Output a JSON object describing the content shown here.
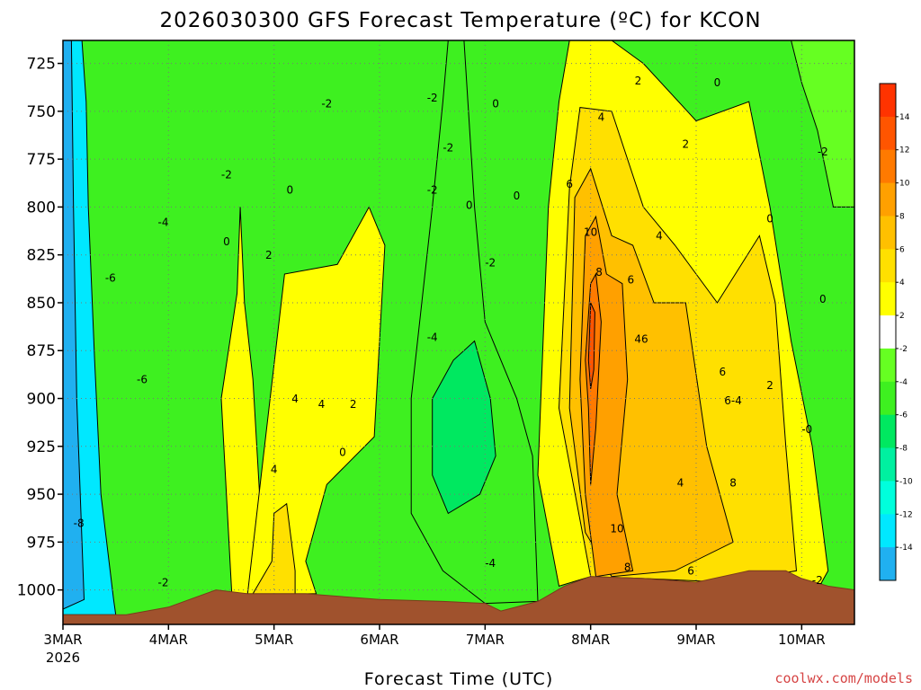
{
  "chart_data": {
    "type": "contour",
    "title": "2026030300 GFS Forecast Temperature (ºC) for KCON",
    "xlabel": "Forecast Time (UTC)",
    "ylabel": "",
    "credit": "coolwx.com/models",
    "x_ticks": [
      {
        "label": "3MAR",
        "sublabel": "2026",
        "day": 0
      },
      {
        "label": "4MAR",
        "sublabel": "",
        "day": 1
      },
      {
        "label": "5MAR",
        "sublabel": "",
        "day": 2
      },
      {
        "label": "6MAR",
        "sublabel": "",
        "day": 3
      },
      {
        "label": "7MAR",
        "sublabel": "",
        "day": 4
      },
      {
        "label": "8MAR",
        "sublabel": "",
        "day": 5
      },
      {
        "label": "9MAR",
        "sublabel": "",
        "day": 6
      },
      {
        "label": "10MAR",
        "sublabel": "",
        "day": 7
      }
    ],
    "x_range_days": [
      0,
      7.5
    ],
    "y_ticks": [
      725,
      750,
      775,
      800,
      825,
      850,
      875,
      900,
      925,
      950,
      975,
      1000
    ],
    "y_range_hpa": [
      713,
      1018
    ],
    "colorbar": {
      "levels": [
        -14,
        -12,
        -10,
        -8,
        -6,
        -4,
        -2,
        2,
        4,
        6,
        8,
        10,
        12,
        14
      ],
      "colors": [
        "#20b0f0",
        "#00e8ff",
        "#00ffdc",
        "#00f0a0",
        "#00e860",
        "#3ef020",
        "#66ff22",
        "#ffffff",
        "#ffff00",
        "#ffe000",
        "#ffc000",
        "#ffa000",
        "#ff7a00",
        "#ff5500",
        "#ff3300"
      ]
    },
    "surface": [
      {
        "day": 0,
        "hpa": 1013
      },
      {
        "day": 0.6,
        "hpa": 1013
      },
      {
        "day": 1.0,
        "hpa": 1009
      },
      {
        "day": 1.45,
        "hpa": 1000
      },
      {
        "day": 1.75,
        "hpa": 1002
      },
      {
        "day": 2.0,
        "hpa": 1002
      },
      {
        "day": 2.3,
        "hpa": 1002
      },
      {
        "day": 3.0,
        "hpa": 1005
      },
      {
        "day": 3.6,
        "hpa": 1006
      },
      {
        "day": 4.0,
        "hpa": 1007
      },
      {
        "day": 4.15,
        "hpa": 1011
      },
      {
        "day": 4.5,
        "hpa": 1006
      },
      {
        "day": 4.75,
        "hpa": 998
      },
      {
        "day": 5.0,
        "hpa": 993
      },
      {
        "day": 5.5,
        "hpa": 994
      },
      {
        "day": 6.0,
        "hpa": 996
      },
      {
        "day": 6.5,
        "hpa": 990
      },
      {
        "day": 6.85,
        "hpa": 990
      },
      {
        "day": 7.0,
        "hpa": 994
      },
      {
        "day": 7.25,
        "hpa": 998
      },
      {
        "day": 7.5,
        "hpa": 1000
      }
    ],
    "regions": [
      {
        "name": "zone-cold-core",
        "level": -14,
        "color": "#00e8ff",
        "pts": [
          [
            0,
            713
          ],
          [
            0.18,
            713
          ],
          [
            0.22,
            745
          ],
          [
            0.24,
            800
          ],
          [
            0.3,
            880
          ],
          [
            0.36,
            950
          ],
          [
            0.48,
            1005
          ],
          [
            0.5,
            1013
          ],
          [
            0,
            1013
          ]
        ]
      },
      {
        "name": "zone-cold-edge",
        "level": -12,
        "color": "#20b0f0",
        "pts": [
          [
            0,
            713
          ],
          [
            0.08,
            713
          ],
          [
            0.1,
            800
          ],
          [
            0.13,
            900
          ],
          [
            0.2,
            1005
          ],
          [
            0,
            1010
          ]
        ]
      },
      {
        "name": "zone-warm-wedge-a",
        "level": 2,
        "color": "#ffff00",
        "pts": [
          [
            1.5,
            900
          ],
          [
            1.65,
            845
          ],
          [
            1.68,
            800
          ],
          [
            1.72,
            850
          ],
          [
            1.8,
            890
          ],
          [
            1.9,
            985
          ],
          [
            2.0,
            1002
          ],
          [
            1.6,
            1002
          ]
        ]
      },
      {
        "name": "zone-warm-wedge-b",
        "level": 2,
        "color": "#ffff00",
        "pts": [
          [
            1.75,
            1002
          ],
          [
            1.9,
            930
          ],
          [
            2.1,
            835
          ],
          [
            2.6,
            830
          ],
          [
            2.9,
            800
          ],
          [
            3.05,
            820
          ],
          [
            2.95,
            920
          ],
          [
            2.5,
            945
          ],
          [
            2.3,
            985
          ],
          [
            2.4,
            1002
          ]
        ]
      },
      {
        "name": "zone-warm-wedge-c",
        "level": 4,
        "color": "#ffe000",
        "pts": [
          [
            1.8,
            1002
          ],
          [
            1.98,
            985
          ],
          [
            2.0,
            960
          ],
          [
            2.12,
            955
          ],
          [
            2.2,
            990
          ],
          [
            2.2,
            1002
          ]
        ]
      },
      {
        "name": "zone-warm-front",
        "level": 2,
        "color": "#ffff00",
        "pts": [
          [
            4.5,
            940
          ],
          [
            4.6,
            800
          ],
          [
            4.7,
            745
          ],
          [
            4.8,
            713
          ],
          [
            5.2,
            713
          ],
          [
            5.5,
            725
          ],
          [
            6.0,
            755
          ],
          [
            6.5,
            745
          ],
          [
            6.7,
            800
          ],
          [
            6.9,
            870
          ],
          [
            7.1,
            925
          ],
          [
            7.25,
            990
          ],
          [
            7.15,
            1000
          ],
          [
            5.0,
            993
          ],
          [
            4.7,
            998
          ]
        ]
      },
      {
        "name": "zone-warm-core-a",
        "level": 4,
        "color": "#ffe000",
        "pts": [
          [
            4.7,
            905
          ],
          [
            4.8,
            790
          ],
          [
            4.9,
            748
          ],
          [
            5.2,
            750
          ],
          [
            5.5,
            800
          ],
          [
            5.8,
            820
          ],
          [
            6.2,
            850
          ],
          [
            6.6,
            815
          ],
          [
            6.75,
            850
          ],
          [
            6.85,
            925
          ],
          [
            6.95,
            990
          ],
          [
            6.3,
            996
          ],
          [
            5.5,
            994
          ],
          [
            5.0,
            993
          ]
        ]
      },
      {
        "name": "zone-warm-core-b",
        "level": 6,
        "color": "#ffc000",
        "pts": [
          [
            4.8,
            905
          ],
          [
            4.85,
            795
          ],
          [
            5.0,
            780
          ],
          [
            5.2,
            815
          ],
          [
            5.4,
            820
          ],
          [
            5.6,
            850
          ],
          [
            5.9,
            850
          ],
          [
            6.1,
            925
          ],
          [
            6.35,
            975
          ],
          [
            5.8,
            990
          ],
          [
            5.2,
            993
          ],
          [
            4.95,
            970
          ]
        ]
      },
      {
        "name": "zone-warm-core-c",
        "level": 8,
        "color": "#ffa000",
        "pts": [
          [
            4.9,
            890
          ],
          [
            4.95,
            815
          ],
          [
            5.05,
            805
          ],
          [
            5.15,
            835
          ],
          [
            5.3,
            840
          ],
          [
            5.35,
            890
          ],
          [
            5.25,
            950
          ],
          [
            5.4,
            990
          ],
          [
            5.05,
            993
          ],
          [
            4.95,
            950
          ]
        ]
      },
      {
        "name": "zone-warm-core-d",
        "level": 10,
        "color": "#ff7a00",
        "pts": [
          [
            4.95,
            880
          ],
          [
            5.0,
            840
          ],
          [
            5.05,
            835
          ],
          [
            5.1,
            860
          ],
          [
            5.05,
            915
          ],
          [
            5.0,
            945
          ],
          [
            4.98,
            905
          ]
        ]
      },
      {
        "name": "zone-warm-core-e",
        "level": 12,
        "color": "#ff5500",
        "pts": [
          [
            4.98,
            880
          ],
          [
            5.0,
            850
          ],
          [
            5.04,
            855
          ],
          [
            5.03,
            885
          ],
          [
            5.0,
            895
          ]
        ]
      },
      {
        "name": "zone-mid-cold",
        "level": -4,
        "color": "#3ef020",
        "pts": [
          [
            3.3,
            900
          ],
          [
            3.5,
            800
          ],
          [
            3.6,
            745
          ],
          [
            3.65,
            713
          ],
          [
            3.8,
            713
          ],
          [
            3.9,
            800
          ],
          [
            4.0,
            860
          ],
          [
            4.3,
            900
          ],
          [
            4.45,
            930
          ],
          [
            4.5,
            1006
          ],
          [
            4.0,
            1007
          ],
          [
            3.6,
            990
          ],
          [
            3.3,
            960
          ]
        ]
      },
      {
        "name": "zone-mid-cold-inner",
        "level": -6,
        "color": "#00e860",
        "pts": [
          [
            3.5,
            900
          ],
          [
            3.7,
            880
          ],
          [
            3.9,
            870
          ],
          [
            4.05,
            900
          ],
          [
            4.1,
            930
          ],
          [
            3.95,
            950
          ],
          [
            3.65,
            960
          ],
          [
            3.5,
            940
          ]
        ]
      },
      {
        "name": "zone-upper-right",
        "level": -2,
        "color": "#66ff22",
        "pts": [
          [
            6.9,
            713
          ],
          [
            7.5,
            713
          ],
          [
            7.5,
            800
          ],
          [
            7.3,
            800
          ],
          [
            7.15,
            760
          ],
          [
            7.0,
            735
          ]
        ]
      }
    ],
    "contour_labels": [
      {
        "text": "-2",
        "day": 2.5,
        "hpa": 748
      },
      {
        "text": "-2",
        "day": 3.5,
        "hpa": 745
      },
      {
        "text": "0",
        "day": 4.1,
        "hpa": 748
      },
      {
        "text": "-2",
        "day": 1.55,
        "hpa": 785
      },
      {
        "text": "-2",
        "day": 3.65,
        "hpa": 771
      },
      {
        "text": "0",
        "day": 2.15,
        "hpa": 793
      },
      {
        "text": "-4",
        "day": 0.95,
        "hpa": 810
      },
      {
        "text": "0",
        "day": 1.55,
        "hpa": 820
      },
      {
        "text": "-2",
        "day": 3.5,
        "hpa": 793
      },
      {
        "text": "0",
        "day": 4.3,
        "hpa": 796
      },
      {
        "text": "2",
        "day": 1.95,
        "hpa": 827
      },
      {
        "text": "-2",
        "day": 4.05,
        "hpa": 831
      },
      {
        "text": "-6",
        "day": 0.45,
        "hpa": 839
      },
      {
        "text": "-4",
        "day": 3.5,
        "hpa": 870
      },
      {
        "text": "-6",
        "day": 0.75,
        "hpa": 892
      },
      {
        "text": "4",
        "day": 2.2,
        "hpa": 902
      },
      {
        "text": "4",
        "day": 2.45,
        "hpa": 905
      },
      {
        "text": "2",
        "day": 2.75,
        "hpa": 905
      },
      {
        "text": "0",
        "day": 2.65,
        "hpa": 930
      },
      {
        "text": "4",
        "day": 2.0,
        "hpa": 939
      },
      {
        "text": "-8",
        "day": 0.15,
        "hpa": 967
      },
      {
        "text": "-2",
        "day": 0.95,
        "hpa": 998
      },
      {
        "text": "-4",
        "day": 4.05,
        "hpa": 988
      },
      {
        "text": "2",
        "day": 5.45,
        "hpa": 736
      },
      {
        "text": "0",
        "day": 6.2,
        "hpa": 737
      },
      {
        "text": "4",
        "day": 5.1,
        "hpa": 755
      },
      {
        "text": "2",
        "day": 5.9,
        "hpa": 769
      },
      {
        "text": "-2",
        "day": 7.2,
        "hpa": 773
      },
      {
        "text": "6",
        "day": 4.8,
        "hpa": 790
      },
      {
        "text": "0",
        "day": 3.85,
        "hpa": 801
      },
      {
        "text": "0",
        "day": 6.7,
        "hpa": 808
      },
      {
        "text": "10",
        "day": 5.0,
        "hpa": 815
      },
      {
        "text": "4",
        "day": 5.65,
        "hpa": 817
      },
      {
        "text": "8",
        "day": 5.08,
        "hpa": 836
      },
      {
        "text": "6",
        "day": 5.38,
        "hpa": 840
      },
      {
        "text": "0",
        "day": 7.2,
        "hpa": 850
      },
      {
        "text": "46",
        "day": 5.48,
        "hpa": 871
      },
      {
        "text": "6",
        "day": 6.25,
        "hpa": 888
      },
      {
        "text": "2",
        "day": 6.7,
        "hpa": 895
      },
      {
        "text": "6-4",
        "day": 6.35,
        "hpa": 903
      },
      {
        "text": "-0",
        "day": 7.05,
        "hpa": 918
      },
      {
        "text": "4",
        "day": 5.85,
        "hpa": 946
      },
      {
        "text": "8",
        "day": 6.35,
        "hpa": 946
      },
      {
        "text": "10",
        "day": 5.25,
        "hpa": 970
      },
      {
        "text": "8",
        "day": 5.35,
        "hpa": 990
      },
      {
        "text": "6",
        "day": 5.95,
        "hpa": 992
      },
      {
        "text": "-2",
        "day": 7.15,
        "hpa": 997
      }
    ]
  }
}
